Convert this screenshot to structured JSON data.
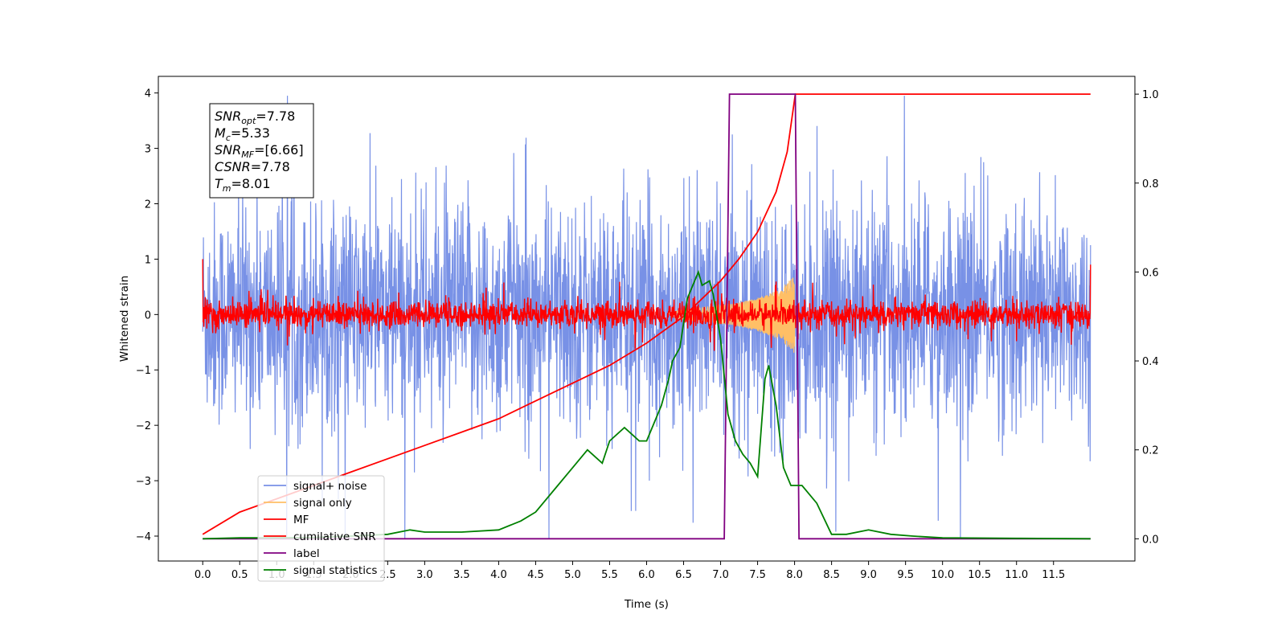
{
  "chart_data": {
    "type": "line",
    "xlabel": "Time (s)",
    "ylabel": "Whitened strain",
    "xlim": [
      -0.6,
      12.6
    ],
    "ylim": [
      -4.45,
      4.3
    ],
    "ylim_right": [
      -0.05,
      1.04
    ],
    "x_ticks": [
      "0.0",
      "0.5",
      "1.0",
      "1.5",
      "2.0",
      "2.5",
      "3.0",
      "3.5",
      "4.0",
      "4.5",
      "5.0",
      "5.5",
      "6.0",
      "6.5",
      "7.0",
      "7.5",
      "8.0",
      "8.5",
      "9.0",
      "9.5",
      "10.0",
      "10.5",
      "11.0",
      "11.5"
    ],
    "y_ticks_left": [
      "4",
      "3",
      "2",
      "1",
      "0",
      "−1",
      "−2",
      "−3",
      "−4"
    ],
    "y_ticks_right": [
      "1.0",
      "0.8",
      "0.6",
      "0.4",
      "0.2",
      "0.0"
    ],
    "annotation": {
      "lines": [
        {
          "main": "SNR",
          "sub": "opt",
          "value": "=7.78"
        },
        {
          "main": "M",
          "sub": "c",
          "value": "=5.33"
        },
        {
          "main": "SNR",
          "sub": "MF",
          "value": "=[6.66]"
        },
        {
          "main": "CSNR",
          "sub": "",
          "value": "=7.78"
        },
        {
          "main": "T",
          "sub": "m",
          "value": "=8.01"
        }
      ]
    },
    "legend_position": "lower-left",
    "series": [
      {
        "name": "signal+ noise",
        "color": "#7891e6",
        "axis": "left",
        "description_values": {
          "x_range": [
            0.0,
            12.0
          ],
          "mean": 0.0,
          "typical_amplitude": 2.0,
          "max": 3.95,
          "min": -4.05
        }
      },
      {
        "name": "signal only",
        "color": "#ffbf66",
        "axis": "left",
        "envelope": {
          "x": [
            6.3,
            6.6,
            6.9,
            7.2,
            7.5,
            7.8,
            8.0
          ],
          "amplitude": [
            0.05,
            0.1,
            0.15,
            0.2,
            0.3,
            0.45,
            0.7
          ]
        }
      },
      {
        "name": "MF",
        "color": "#ff0000",
        "axis": "left",
        "description_values": {
          "x_range": [
            0.0,
            12.0
          ],
          "mean": 0.0,
          "typical_amplitude": 0.3,
          "start_value": 1.0,
          "end_value": 0.9
        }
      },
      {
        "name": "cumilative SNR",
        "color": "#ff0000",
        "axis": "right",
        "x": [
          0.0,
          0.5,
          1.0,
          1.5,
          2.0,
          2.5,
          3.0,
          3.5,
          4.0,
          4.5,
          5.0,
          5.5,
          6.0,
          6.5,
          7.0,
          7.25,
          7.5,
          7.75,
          7.9,
          8.01,
          8.5,
          9.0,
          10.0,
          11.0,
          12.0
        ],
        "y": [
          0.01,
          0.06,
          0.09,
          0.12,
          0.15,
          0.18,
          0.21,
          0.24,
          0.27,
          0.31,
          0.35,
          0.39,
          0.44,
          0.5,
          0.58,
          0.63,
          0.69,
          0.78,
          0.87,
          1.0,
          1.0,
          1.0,
          1.0,
          1.0,
          1.0
        ]
      },
      {
        "name": "label",
        "color": "#800080",
        "axis": "right",
        "x": [
          0.0,
          7.05,
          7.12,
          8.01,
          8.06,
          12.0
        ],
        "y": [
          0.0,
          0.0,
          1.0,
          1.0,
          0.0,
          0.0
        ]
      },
      {
        "name": "signal statistics",
        "color": "#008000",
        "axis": "right",
        "x": [
          0.0,
          0.5,
          1.0,
          1.5,
          2.0,
          2.5,
          2.8,
          3.0,
          3.5,
          4.0,
          4.3,
          4.5,
          4.8,
          5.0,
          5.2,
          5.4,
          5.5,
          5.7,
          5.9,
          6.0,
          6.1,
          6.2,
          6.3,
          6.35,
          6.45,
          6.55,
          6.6,
          6.7,
          6.75,
          6.85,
          6.9,
          7.0,
          7.1,
          7.2,
          7.3,
          7.4,
          7.5,
          7.6,
          7.65,
          7.75,
          7.85,
          7.95,
          8.1,
          8.3,
          8.5,
          8.7,
          9.0,
          9.3,
          9.6,
          10.0,
          11.0,
          12.0
        ],
        "y": [
          0.0,
          0.002,
          0.002,
          0.003,
          0.006,
          0.01,
          0.02,
          0.015,
          0.015,
          0.02,
          0.04,
          0.06,
          0.12,
          0.16,
          0.2,
          0.17,
          0.22,
          0.25,
          0.22,
          0.22,
          0.26,
          0.3,
          0.36,
          0.4,
          0.43,
          0.54,
          0.56,
          0.6,
          0.57,
          0.58,
          0.55,
          0.45,
          0.28,
          0.22,
          0.19,
          0.17,
          0.14,
          0.36,
          0.39,
          0.3,
          0.16,
          0.12,
          0.12,
          0.08,
          0.01,
          0.01,
          0.02,
          0.01,
          0.006,
          0.002,
          0.001,
          0.0
        ]
      }
    ]
  }
}
